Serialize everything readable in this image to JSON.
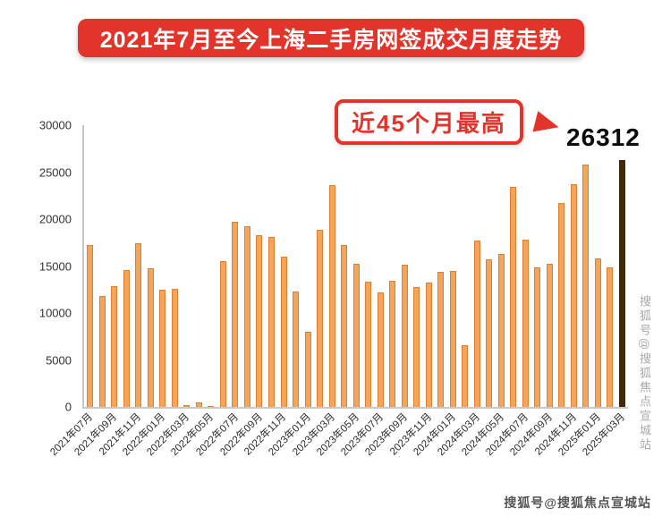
{
  "banner": {
    "title": "2021年7月至今上海二手房网签成交月度走势",
    "bg_color": "#E2342B"
  },
  "annotation": {
    "label": "近45个月最高",
    "value": "26312"
  },
  "watermarks": {
    "side": "搜狐号@搜狐焦点宣城站",
    "corner": "搜狐号@搜狐焦点宣城站"
  },
  "chart_data": {
    "type": "bar",
    "title": "2021年7月至今上海二手房网签成交月度走势",
    "xlabel": "",
    "ylabel": "",
    "ylim": [
      0,
      30000
    ],
    "yticks": [
      0,
      5000,
      10000,
      15000,
      20000,
      25000,
      30000
    ],
    "xtick_every": 2,
    "grid": false,
    "legend": "none",
    "bar_color": "#F2A55C",
    "bar_border": "#DD7F2E",
    "highlight_index": 44,
    "highlight_color": "#40280C",
    "categories": [
      "2021年07月",
      "2021年08月",
      "2021年09月",
      "2021年10月",
      "2021年11月",
      "2021年12月",
      "2022年01月",
      "2022年02月",
      "2022年03月",
      "2022年04月",
      "2022年05月",
      "2022年06月",
      "2022年07月",
      "2022年08月",
      "2022年09月",
      "2022年10月",
      "2022年11月",
      "2022年12月",
      "2023年01月",
      "2023年02月",
      "2023年03月",
      "2023年04月",
      "2023年05月",
      "2023年06月",
      "2023年07月",
      "2023年08月",
      "2023年09月",
      "2023年10月",
      "2023年11月",
      "2023年12月",
      "2024年01月",
      "2024年02月",
      "2024年03月",
      "2024年04月",
      "2024年05月",
      "2024年06月",
      "2024年07月",
      "2024年08月",
      "2024年09月",
      "2024年10月",
      "2024年11月",
      "2024年12月",
      "2025年01月",
      "2025年02月",
      "2025年03月"
    ],
    "values": [
      17200,
      11800,
      12900,
      14600,
      17400,
      14800,
      12500,
      12600,
      200,
      500,
      100,
      15500,
      19700,
      19200,
      18300,
      18100,
      16000,
      12300,
      8000,
      18900,
      23600,
      17200,
      15200,
      13300,
      12200,
      13400,
      15100,
      12800,
      13200,
      14400,
      14500,
      6600,
      17700,
      15700,
      16300,
      23400,
      17800,
      14900,
      15200,
      21700,
      23700,
      25800,
      15800,
      14900,
      26312
    ],
    "annotation": {
      "text": "近45个月最高",
      "value": 26312,
      "target": "2025年03月"
    }
  }
}
